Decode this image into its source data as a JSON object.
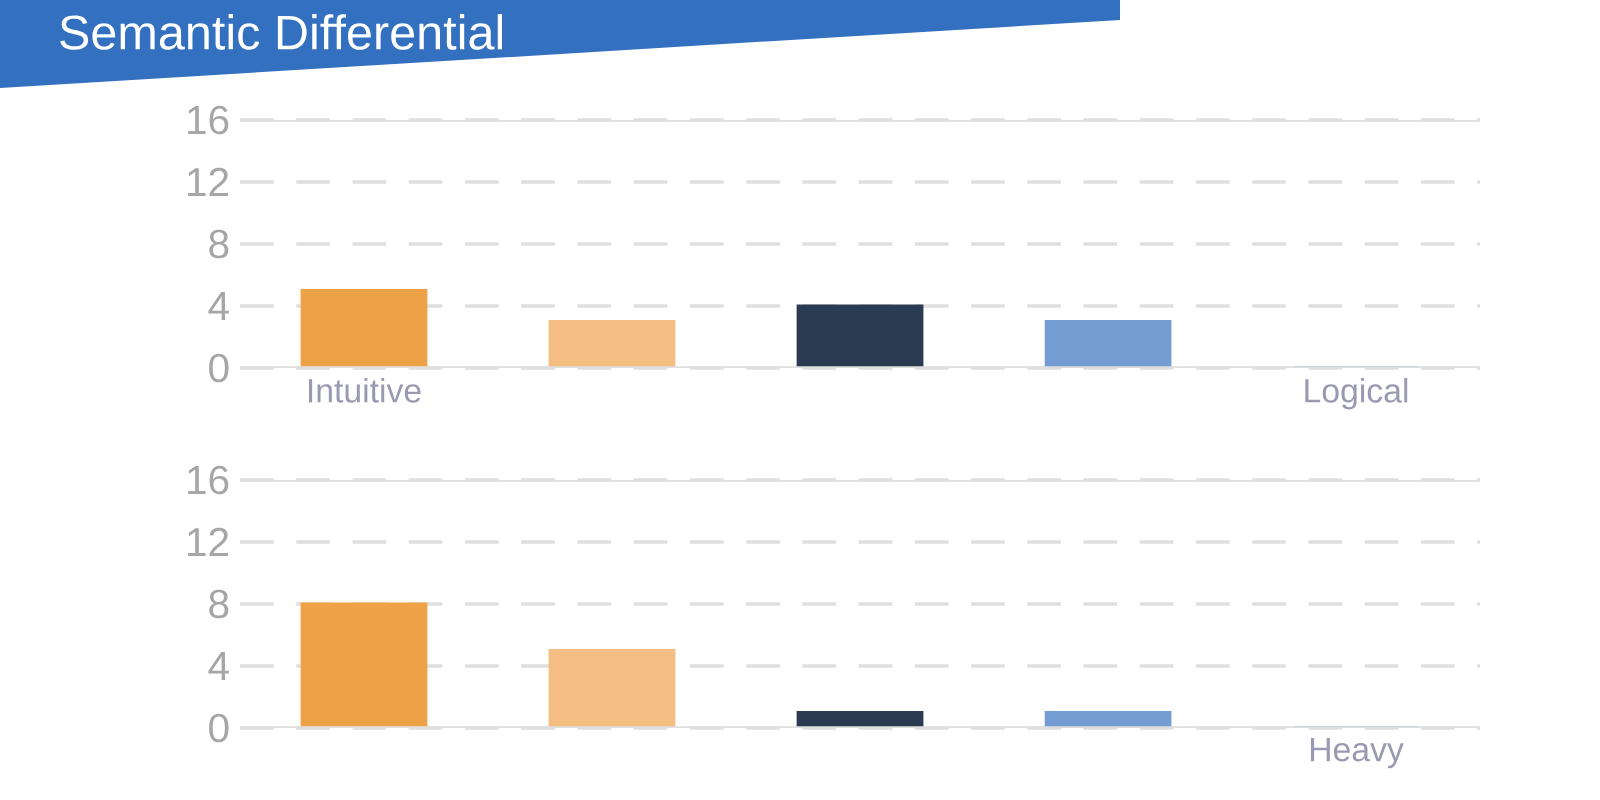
{
  "chart_data": [
    {
      "type": "bar",
      "title": "Semantic Differential",
      "categories": [
        "Intuitive",
        null,
        null,
        null,
        "Logical"
      ],
      "values": [
        5,
        3,
        4,
        3,
        0
      ],
      "colors": [
        "#eea247",
        "#f4be82",
        "#2b3c52",
        "#739cd2",
        "#1a78c2"
      ],
      "ylim": [
        0,
        16
      ],
      "yticks": [
        0,
        4,
        8,
        12,
        16
      ],
      "grid": "y"
    },
    {
      "type": "bar",
      "categories": [
        null,
        null,
        null,
        null,
        "Heavy"
      ],
      "values": [
        8,
        5,
        1,
        1,
        0
      ],
      "colors": [
        "#eea247",
        "#f4be82",
        "#2b3c52",
        "#739cd2",
        "#1a78c2"
      ],
      "ylim": [
        0,
        16
      ],
      "yticks": [
        0,
        4,
        8,
        12,
        16
      ],
      "grid": "y"
    }
  ]
}
